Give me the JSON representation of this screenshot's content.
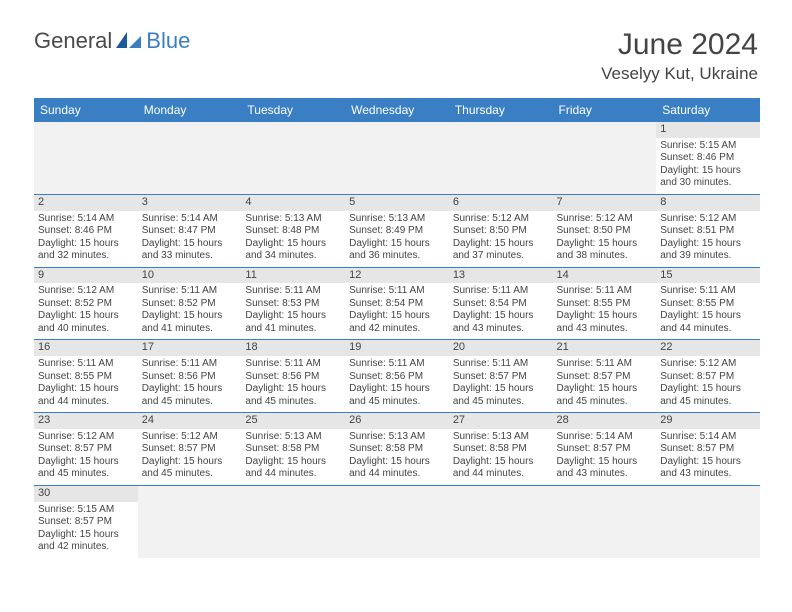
{
  "logo": {
    "text1": "General",
    "text2": "Blue"
  },
  "title": "June 2024",
  "location": "Veselyy Kut, Ukraine",
  "colors": {
    "header_bg": "#3a7fc4",
    "header_text": "#ffffff",
    "daynum_bg": "#e6e6e6",
    "border": "#3a7fc4",
    "empty_bg": "#f2f2f2",
    "text": "#444444"
  },
  "weekdays": [
    "Sunday",
    "Monday",
    "Tuesday",
    "Wednesday",
    "Thursday",
    "Friday",
    "Saturday"
  ],
  "weeks": [
    [
      null,
      null,
      null,
      null,
      null,
      null,
      {
        "day": "1",
        "sunrise": "Sunrise: 5:15 AM",
        "sunset": "Sunset: 8:46 PM",
        "daylight1": "Daylight: 15 hours",
        "daylight2": "and 30 minutes."
      }
    ],
    [
      {
        "day": "2",
        "sunrise": "Sunrise: 5:14 AM",
        "sunset": "Sunset: 8:46 PM",
        "daylight1": "Daylight: 15 hours",
        "daylight2": "and 32 minutes."
      },
      {
        "day": "3",
        "sunrise": "Sunrise: 5:14 AM",
        "sunset": "Sunset: 8:47 PM",
        "daylight1": "Daylight: 15 hours",
        "daylight2": "and 33 minutes."
      },
      {
        "day": "4",
        "sunrise": "Sunrise: 5:13 AM",
        "sunset": "Sunset: 8:48 PM",
        "daylight1": "Daylight: 15 hours",
        "daylight2": "and 34 minutes."
      },
      {
        "day": "5",
        "sunrise": "Sunrise: 5:13 AM",
        "sunset": "Sunset: 8:49 PM",
        "daylight1": "Daylight: 15 hours",
        "daylight2": "and 36 minutes."
      },
      {
        "day": "6",
        "sunrise": "Sunrise: 5:12 AM",
        "sunset": "Sunset: 8:50 PM",
        "daylight1": "Daylight: 15 hours",
        "daylight2": "and 37 minutes."
      },
      {
        "day": "7",
        "sunrise": "Sunrise: 5:12 AM",
        "sunset": "Sunset: 8:50 PM",
        "daylight1": "Daylight: 15 hours",
        "daylight2": "and 38 minutes."
      },
      {
        "day": "8",
        "sunrise": "Sunrise: 5:12 AM",
        "sunset": "Sunset: 8:51 PM",
        "daylight1": "Daylight: 15 hours",
        "daylight2": "and 39 minutes."
      }
    ],
    [
      {
        "day": "9",
        "sunrise": "Sunrise: 5:12 AM",
        "sunset": "Sunset: 8:52 PM",
        "daylight1": "Daylight: 15 hours",
        "daylight2": "and 40 minutes."
      },
      {
        "day": "10",
        "sunrise": "Sunrise: 5:11 AM",
        "sunset": "Sunset: 8:52 PM",
        "daylight1": "Daylight: 15 hours",
        "daylight2": "and 41 minutes."
      },
      {
        "day": "11",
        "sunrise": "Sunrise: 5:11 AM",
        "sunset": "Sunset: 8:53 PM",
        "daylight1": "Daylight: 15 hours",
        "daylight2": "and 41 minutes."
      },
      {
        "day": "12",
        "sunrise": "Sunrise: 5:11 AM",
        "sunset": "Sunset: 8:54 PM",
        "daylight1": "Daylight: 15 hours",
        "daylight2": "and 42 minutes."
      },
      {
        "day": "13",
        "sunrise": "Sunrise: 5:11 AM",
        "sunset": "Sunset: 8:54 PM",
        "daylight1": "Daylight: 15 hours",
        "daylight2": "and 43 minutes."
      },
      {
        "day": "14",
        "sunrise": "Sunrise: 5:11 AM",
        "sunset": "Sunset: 8:55 PM",
        "daylight1": "Daylight: 15 hours",
        "daylight2": "and 43 minutes."
      },
      {
        "day": "15",
        "sunrise": "Sunrise: 5:11 AM",
        "sunset": "Sunset: 8:55 PM",
        "daylight1": "Daylight: 15 hours",
        "daylight2": "and 44 minutes."
      }
    ],
    [
      {
        "day": "16",
        "sunrise": "Sunrise: 5:11 AM",
        "sunset": "Sunset: 8:55 PM",
        "daylight1": "Daylight: 15 hours",
        "daylight2": "and 44 minutes."
      },
      {
        "day": "17",
        "sunrise": "Sunrise: 5:11 AM",
        "sunset": "Sunset: 8:56 PM",
        "daylight1": "Daylight: 15 hours",
        "daylight2": "and 45 minutes."
      },
      {
        "day": "18",
        "sunrise": "Sunrise: 5:11 AM",
        "sunset": "Sunset: 8:56 PM",
        "daylight1": "Daylight: 15 hours",
        "daylight2": "and 45 minutes."
      },
      {
        "day": "19",
        "sunrise": "Sunrise: 5:11 AM",
        "sunset": "Sunset: 8:56 PM",
        "daylight1": "Daylight: 15 hours",
        "daylight2": "and 45 minutes."
      },
      {
        "day": "20",
        "sunrise": "Sunrise: 5:11 AM",
        "sunset": "Sunset: 8:57 PM",
        "daylight1": "Daylight: 15 hours",
        "daylight2": "and 45 minutes."
      },
      {
        "day": "21",
        "sunrise": "Sunrise: 5:11 AM",
        "sunset": "Sunset: 8:57 PM",
        "daylight1": "Daylight: 15 hours",
        "daylight2": "and 45 minutes."
      },
      {
        "day": "22",
        "sunrise": "Sunrise: 5:12 AM",
        "sunset": "Sunset: 8:57 PM",
        "daylight1": "Daylight: 15 hours",
        "daylight2": "and 45 minutes."
      }
    ],
    [
      {
        "day": "23",
        "sunrise": "Sunrise: 5:12 AM",
        "sunset": "Sunset: 8:57 PM",
        "daylight1": "Daylight: 15 hours",
        "daylight2": "and 45 minutes."
      },
      {
        "day": "24",
        "sunrise": "Sunrise: 5:12 AM",
        "sunset": "Sunset: 8:57 PM",
        "daylight1": "Daylight: 15 hours",
        "daylight2": "and 45 minutes."
      },
      {
        "day": "25",
        "sunrise": "Sunrise: 5:13 AM",
        "sunset": "Sunset: 8:58 PM",
        "daylight1": "Daylight: 15 hours",
        "daylight2": "and 44 minutes."
      },
      {
        "day": "26",
        "sunrise": "Sunrise: 5:13 AM",
        "sunset": "Sunset: 8:58 PM",
        "daylight1": "Daylight: 15 hours",
        "daylight2": "and 44 minutes."
      },
      {
        "day": "27",
        "sunrise": "Sunrise: 5:13 AM",
        "sunset": "Sunset: 8:58 PM",
        "daylight1": "Daylight: 15 hours",
        "daylight2": "and 44 minutes."
      },
      {
        "day": "28",
        "sunrise": "Sunrise: 5:14 AM",
        "sunset": "Sunset: 8:57 PM",
        "daylight1": "Daylight: 15 hours",
        "daylight2": "and 43 minutes."
      },
      {
        "day": "29",
        "sunrise": "Sunrise: 5:14 AM",
        "sunset": "Sunset: 8:57 PM",
        "daylight1": "Daylight: 15 hours",
        "daylight2": "and 43 minutes."
      }
    ],
    [
      {
        "day": "30",
        "sunrise": "Sunrise: 5:15 AM",
        "sunset": "Sunset: 8:57 PM",
        "daylight1": "Daylight: 15 hours",
        "daylight2": "and 42 minutes."
      },
      null,
      null,
      null,
      null,
      null,
      null
    ]
  ]
}
